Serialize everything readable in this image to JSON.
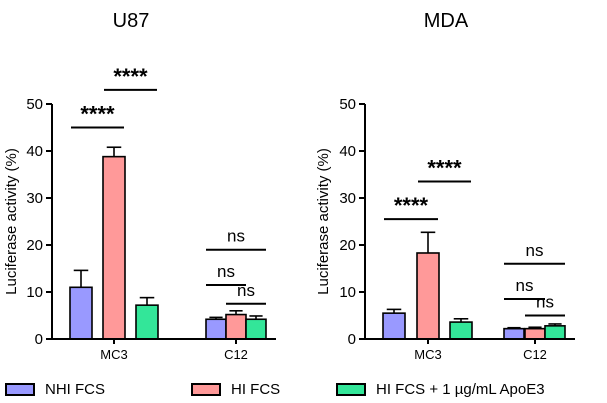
{
  "chart_data": [
    {
      "type": "bar",
      "title": "U87",
      "xlabel": "",
      "ylabel": "Luciferase activity (%)",
      "ylim": [
        0,
        50
      ],
      "yticks": [
        "0",
        "10",
        "20",
        "30",
        "40",
        "50"
      ],
      "categories": [
        "MC3",
        "C12"
      ],
      "series": [
        {
          "name": "NHI FCS",
          "values": [
            11,
            4.2
          ],
          "errors": [
            3.6,
            0.4
          ]
        },
        {
          "name": "HI FCS",
          "values": [
            38.8,
            5.2
          ],
          "errors": [
            2.0,
            0.8
          ]
        },
        {
          "name": "HI FCS + 1 µg/mL ApoE3",
          "values": [
            7.2,
            4.2
          ],
          "errors": [
            1.6,
            0.7
          ]
        }
      ],
      "annotations": [
        {
          "label": "****",
          "group": 0,
          "from": 0,
          "to": 1,
          "y": 45
        },
        {
          "label": "****",
          "group": 0,
          "from": 1,
          "to": 2,
          "y": 53
        },
        {
          "label": "ns",
          "group": 1,
          "from": 0,
          "to": 2,
          "y": 19
        },
        {
          "label": "ns",
          "group": 1,
          "from": 0,
          "to": 1,
          "y": 11.5
        },
        {
          "label": "ns",
          "group": 1,
          "from": 1,
          "to": 2,
          "y": 7.5
        }
      ]
    },
    {
      "type": "bar",
      "title": "MDA",
      "xlabel": "",
      "ylabel": "Luciferase activity (%)",
      "ylim": [
        0,
        50
      ],
      "yticks": [
        "0",
        "10",
        "20",
        "30",
        "40",
        "50"
      ],
      "categories": [
        "MC3",
        "C12"
      ],
      "series": [
        {
          "name": "NHI FCS",
          "values": [
            5.5,
            2.2
          ],
          "errors": [
            0.8,
            0.2
          ]
        },
        {
          "name": "HI FCS",
          "values": [
            18.3,
            2.2
          ],
          "errors": [
            4.4,
            0.3
          ]
        },
        {
          "name": "HI FCS + 1 µg/mL ApoE3",
          "values": [
            3.6,
            2.8
          ],
          "errors": [
            0.7,
            0.4
          ]
        }
      ],
      "annotations": [
        {
          "label": "****",
          "group": 0,
          "from": 0,
          "to": 1,
          "y": 25.5
        },
        {
          "label": "****",
          "group": 0,
          "from": 1,
          "to": 2,
          "y": 33.5
        },
        {
          "label": "ns",
          "group": 1,
          "from": 0,
          "to": 2,
          "y": 16
        },
        {
          "label": "ns",
          "group": 1,
          "from": 0,
          "to": 1,
          "y": 8.5
        },
        {
          "label": "ns",
          "group": 1,
          "from": 1,
          "to": 2,
          "y": 5
        }
      ]
    }
  ],
  "legend": {
    "items": [
      {
        "label": "NHI FCS",
        "color": "#9999ff"
      },
      {
        "label": "HI FCS",
        "color": "#ff9999"
      },
      {
        "label": "HI FCS + 1 µg/mL ApoE3",
        "color": "#33e699"
      }
    ]
  }
}
